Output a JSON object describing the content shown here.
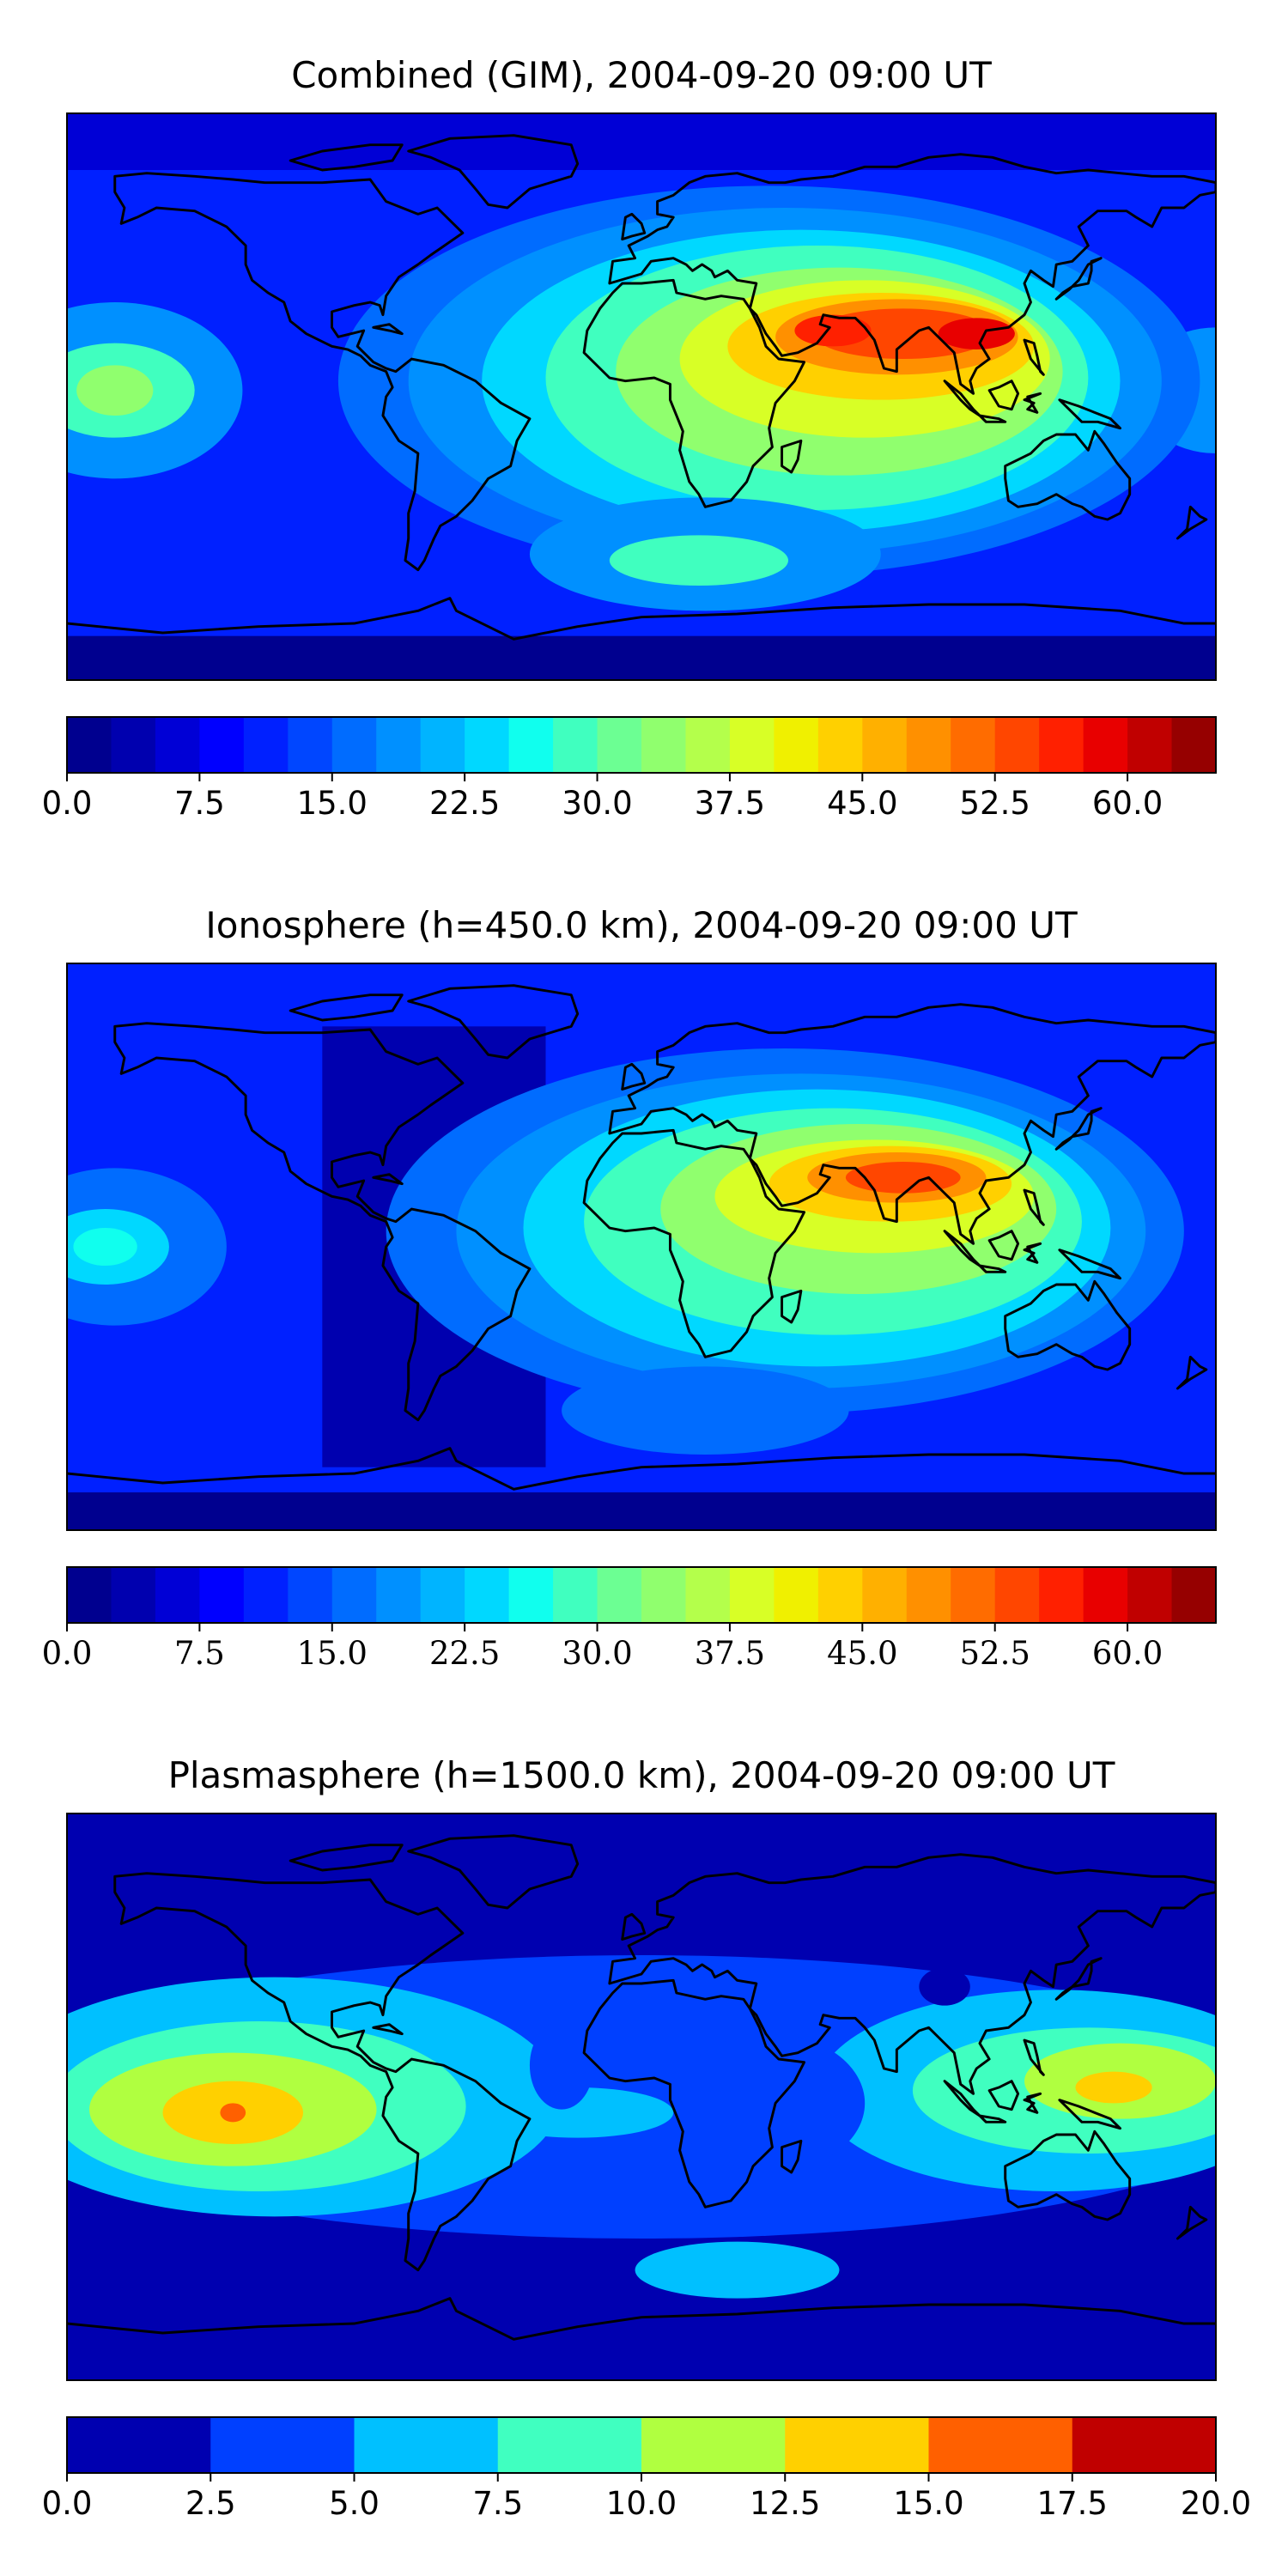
{
  "chart_data": [
    {
      "type": "heatmap",
      "title": "Combined (GIM), 2004-09-20 09:00 UT",
      "colorbar": {
        "levels": [
          0.0,
          2.5,
          5.0,
          7.5,
          10.0,
          12.5,
          15.0,
          17.5,
          20.0,
          22.5,
          25.0,
          27.5,
          30.0,
          32.5,
          35.0,
          37.5,
          40.0,
          42.5,
          45.0,
          47.5,
          50.0,
          52.5,
          55.0,
          57.5,
          60.0,
          62.5,
          65.0
        ],
        "ticks": [
          {
            "value": 0.0,
            "label": "0.0"
          },
          {
            "value": 7.5,
            "label": "7.5"
          },
          {
            "value": 15.0,
            "label": "15.0"
          },
          {
            "value": 22.5,
            "label": "22.5"
          },
          {
            "value": 30.0,
            "label": "30.0"
          },
          {
            "value": 37.5,
            "label": "37.5"
          },
          {
            "value": 45.0,
            "label": "45.0"
          },
          {
            "value": 52.5,
            "label": "52.5"
          },
          {
            "value": 60.0,
            "label": "60.0"
          }
        ]
      },
      "features": [
        {
          "name": "peak-south-asia",
          "lon": 88,
          "lat": 20,
          "value": 58
        },
        {
          "name": "peak-arabia",
          "lon": 45,
          "lat": 22,
          "value": 52
        },
        {
          "name": "bulge-africa",
          "lon": 25,
          "lat": -5,
          "value": 36
        },
        {
          "name": "bulge-indian-ocean",
          "lon": 70,
          "lat": -20,
          "value": 32
        },
        {
          "name": "east-pacific-secondary",
          "lon": -165,
          "lat": 0,
          "value": 27
        },
        {
          "name": "southern-patch",
          "lon": 15,
          "lat": -52,
          "value": 25
        }
      ],
      "colors": [
        "#00008f",
        "#0000af",
        "#0000d6",
        "#0000ff",
        "#0020ff",
        "#0046ff",
        "#006cff",
        "#0090ff",
        "#00b4ff",
        "#00d8ff",
        "#10ffee",
        "#40ffbf",
        "#6cff93",
        "#90ff6e",
        "#b4ff4b",
        "#d8ff26",
        "#f0f000",
        "#ffd000",
        "#ffb000",
        "#ff9000",
        "#ff6c00",
        "#ff4600",
        "#ff2000",
        "#e80000",
        "#c00000",
        "#960000"
      ]
    },
    {
      "type": "heatmap",
      "title": "Ionosphere  (h=450.0 km), 2004-09-20 09:00 UT",
      "colorbar": {
        "levels": [
          0.0,
          2.5,
          5.0,
          7.5,
          10.0,
          12.5,
          15.0,
          17.5,
          20.0,
          22.5,
          25.0,
          27.5,
          30.0,
          32.5,
          35.0,
          37.5,
          40.0,
          42.5,
          45.0,
          47.5,
          50.0,
          52.5,
          55.0,
          57.5,
          60.0,
          62.5,
          65.0
        ],
        "ticks": [
          {
            "value": 0.0,
            "label": "0.0"
          },
          {
            "value": 7.5,
            "label": "7.5"
          },
          {
            "value": 15.0,
            "label": "15.0"
          },
          {
            "value": 22.5,
            "label": "22.5"
          },
          {
            "value": 30.0,
            "label": "30.0"
          },
          {
            "value": 37.5,
            "label": "37.5"
          },
          {
            "value": 45.0,
            "label": "45.0"
          },
          {
            "value": 52.5,
            "label": "52.5"
          },
          {
            "value": 60.0,
            "label": "60.0"
          }
        ]
      },
      "features": [
        {
          "name": "peak-south-asia",
          "lon": 85,
          "lat": 22,
          "value": 55
        },
        {
          "name": "peak-arabia",
          "lon": 50,
          "lat": 22,
          "value": 48
        },
        {
          "name": "bulge-africa",
          "lon": 25,
          "lat": -5,
          "value": 32
        },
        {
          "name": "bulge-indian-ocean",
          "lon": 70,
          "lat": -20,
          "value": 27
        },
        {
          "name": "east-pacific-secondary",
          "lon": -170,
          "lat": 0,
          "value": 20
        }
      ],
      "colors": [
        "#00008f",
        "#0000af",
        "#0000d6",
        "#0000ff",
        "#0020ff",
        "#0046ff",
        "#006cff",
        "#0090ff",
        "#00b4ff",
        "#00d8ff",
        "#10ffee",
        "#40ffbf",
        "#6cff93",
        "#90ff6e",
        "#b4ff4b",
        "#d8ff26",
        "#f0f000",
        "#ffd000",
        "#ffb000",
        "#ff9000",
        "#ff6c00",
        "#ff4600",
        "#ff2000",
        "#e80000",
        "#c00000",
        "#960000"
      ]
    },
    {
      "type": "heatmap",
      "title": "Plasmasphere (h=1500.0 km), 2004-09-20 09:00 UT",
      "colorbar": {
        "levels": [
          0.0,
          2.5,
          5.0,
          7.5,
          10.0,
          12.5,
          15.0,
          17.5,
          20.0
        ],
        "ticks": [
          {
            "value": 0.0,
            "label": "0.0"
          },
          {
            "value": 2.5,
            "label": "2.5"
          },
          {
            "value": 5.0,
            "label": "5.0"
          },
          {
            "value": 7.5,
            "label": "7.5"
          },
          {
            "value": 10.0,
            "label": "10.0"
          },
          {
            "value": 12.5,
            "label": "12.5"
          },
          {
            "value": 15.0,
            "label": "15.0"
          },
          {
            "value": 17.5,
            "label": "17.5"
          },
          {
            "value": 20.0,
            "label": "20.0"
          }
        ]
      },
      "features": [
        {
          "name": "peak-east-pacific",
          "lon": -128,
          "lat": -5,
          "value": 16
        },
        {
          "name": "peak-west-pacific",
          "lon": 140,
          "lat": 2,
          "value": 13
        },
        {
          "name": "southern-patch",
          "lon": 20,
          "lat": -55,
          "value": 6
        }
      ],
      "colors": [
        "#0000b0",
        "#0040ff",
        "#00c0ff",
        "#40ffc0",
        "#b0ff40",
        "#ffd000",
        "#ff6000",
        "#c00000"
      ]
    }
  ]
}
